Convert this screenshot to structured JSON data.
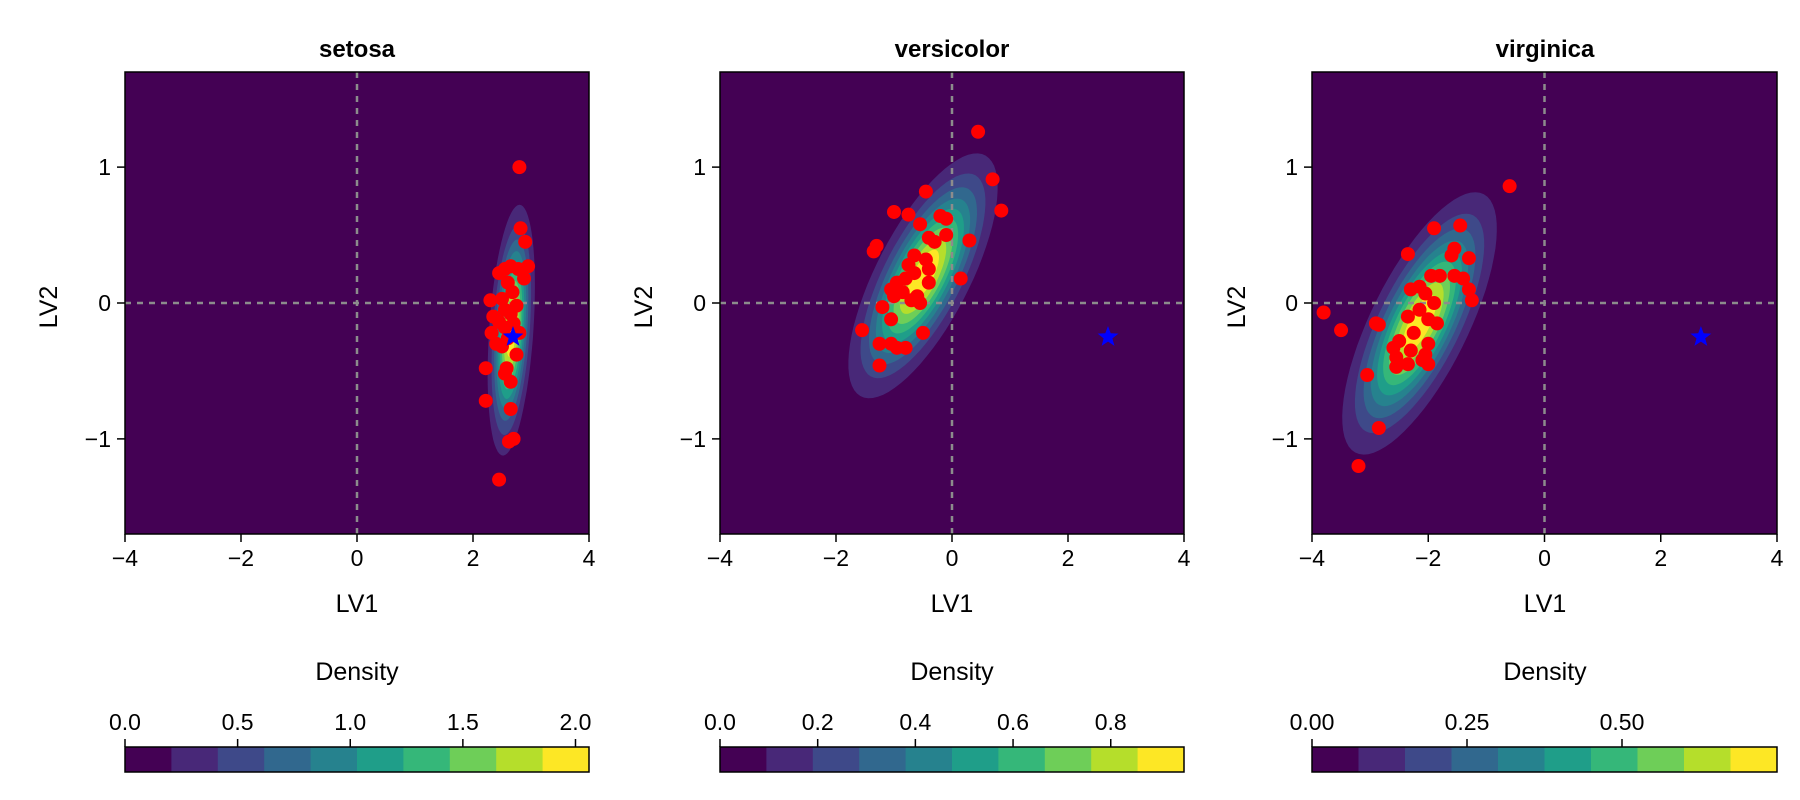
{
  "chart_data": [
    {
      "type": "scatter",
      "title": "setosa",
      "xlabel": "LV1",
      "ylabel": "LV2",
      "xlim": [
        -4,
        4
      ],
      "ylim": [
        -1.7,
        1.7
      ],
      "xticks": [
        -4,
        -2,
        0,
        2,
        4
      ],
      "xtick_labels": [
        "−4",
        "−2",
        "0",
        "2",
        "4"
      ],
      "yticks": [
        -1,
        0,
        1
      ],
      "ytick_labels": [
        "−1",
        "0",
        "1"
      ],
      "reference_lines": {
        "x": 0,
        "y": 0,
        "style": "dashed",
        "color": "#8c8c8c"
      },
      "background_color": "#440154",
      "density": {
        "center": [
          2.66,
          -0.2
        ],
        "sx": 0.19,
        "sy": 0.43,
        "rho": 0.35
      },
      "star_point": {
        "x": 2.69,
        "y": -0.25,
        "color": "#0000ff"
      },
      "point_color": "#ff0000",
      "points": [
        [
          2.8,
          1.0
        ],
        [
          2.82,
          0.55
        ],
        [
          2.9,
          0.45
        ],
        [
          2.95,
          0.27
        ],
        [
          2.65,
          0.27
        ],
        [
          2.78,
          0.25
        ],
        [
          2.55,
          0.25
        ],
        [
          2.45,
          0.22
        ],
        [
          2.88,
          0.18
        ],
        [
          2.6,
          0.15
        ],
        [
          2.68,
          0.08
        ],
        [
          2.5,
          0.03
        ],
        [
          2.3,
          0.02
        ],
        [
          2.75,
          -0.02
        ],
        [
          2.55,
          -0.05
        ],
        [
          2.65,
          -0.08
        ],
        [
          2.35,
          -0.1
        ],
        [
          2.45,
          -0.14
        ],
        [
          2.7,
          -0.15
        ],
        [
          2.55,
          -0.18
        ],
        [
          2.32,
          -0.22
        ],
        [
          2.8,
          -0.22
        ],
        [
          2.6,
          -0.26
        ],
        [
          2.4,
          -0.3
        ],
        [
          2.5,
          -0.32
        ],
        [
          2.75,
          -0.38
        ],
        [
          2.22,
          -0.48
        ],
        [
          2.58,
          -0.48
        ],
        [
          2.55,
          -0.52
        ],
        [
          2.65,
          -0.58
        ],
        [
          2.22,
          -0.72
        ],
        [
          2.65,
          -0.78
        ],
        [
          2.7,
          -1.0
        ],
        [
          2.62,
          -1.02
        ],
        [
          2.45,
          -1.3
        ]
      ],
      "colorbar": {
        "label": "Density",
        "range": [
          0,
          2.06
        ],
        "ticks": [
          0,
          0.5,
          1.0,
          1.5,
          2.0
        ],
        "tick_labels": [
          "0.0",
          "0.5",
          "1.0",
          "1.5",
          "2.0"
        ],
        "levels": 10
      }
    },
    {
      "type": "scatter",
      "title": "versicolor",
      "xlabel": "LV1",
      "ylabel": "LV2",
      "xlim": [
        -4,
        4
      ],
      "ylim": [
        -1.7,
        1.7
      ],
      "xticks": [
        -4,
        -2,
        0,
        2,
        4
      ],
      "xtick_labels": [
        "−4",
        "−2",
        "0",
        "2",
        "4"
      ],
      "yticks": [
        -1,
        0,
        1
      ],
      "ytick_labels": [
        "−1",
        "0",
        "1"
      ],
      "reference_lines": {
        "x": 0,
        "y": 0,
        "style": "dashed",
        "color": "#8c8c8c"
      },
      "background_color": "#440154",
      "density": {
        "center": [
          -0.5,
          0.2
        ],
        "sx": 0.6,
        "sy": 0.42,
        "rho": 0.72
      },
      "star_point": {
        "x": 2.69,
        "y": -0.25,
        "color": "#0000ff"
      },
      "point_color": "#ff0000",
      "points": [
        [
          0.45,
          1.26
        ],
        [
          0.7,
          0.91
        ],
        [
          -0.45,
          0.82
        ],
        [
          -1.0,
          0.67
        ],
        [
          0.85,
          0.68
        ],
        [
          -0.75,
          0.65
        ],
        [
          -0.2,
          0.64
        ],
        [
          -0.1,
          0.62
        ],
        [
          -0.55,
          0.58
        ],
        [
          -0.1,
          0.5
        ],
        [
          0.3,
          0.46
        ],
        [
          -0.4,
          0.48
        ],
        [
          -0.3,
          0.45
        ],
        [
          -1.3,
          0.42
        ],
        [
          -1.35,
          0.38
        ],
        [
          -0.65,
          0.35
        ],
        [
          -0.45,
          0.32
        ],
        [
          -0.75,
          0.28
        ],
        [
          -0.65,
          0.22
        ],
        [
          -0.4,
          0.25
        ],
        [
          0.15,
          0.18
        ],
        [
          -0.8,
          0.18
        ],
        [
          -0.95,
          0.15
        ],
        [
          -1.05,
          0.1
        ],
        [
          -0.4,
          0.15
        ],
        [
          -0.85,
          0.08
        ],
        [
          -0.6,
          0.05
        ],
        [
          -1.0,
          0.05
        ],
        [
          -0.7,
          0.02
        ],
        [
          -0.55,
          0.0
        ],
        [
          -1.2,
          -0.03
        ],
        [
          -1.05,
          -0.12
        ],
        [
          -1.55,
          -0.2
        ],
        [
          -0.5,
          -0.22
        ],
        [
          -1.25,
          -0.3
        ],
        [
          -1.05,
          -0.3
        ],
        [
          -0.95,
          -0.33
        ],
        [
          -0.8,
          -0.33
        ],
        [
          -1.25,
          -0.46
        ]
      ],
      "colorbar": {
        "label": "Density",
        "range": [
          0,
          0.95
        ],
        "ticks": [
          0,
          0.2,
          0.4,
          0.6,
          0.8
        ],
        "tick_labels": [
          "0.0",
          "0.2",
          "0.4",
          "0.6",
          "0.8"
        ],
        "levels": 10
      }
    },
    {
      "type": "scatter",
      "title": "virginica",
      "xlabel": "LV1",
      "ylabel": "LV2",
      "xlim": [
        -4,
        4
      ],
      "ylim": [
        -1.7,
        1.7
      ],
      "xticks": [
        -4,
        -2,
        0,
        2,
        4
      ],
      "xtick_labels": [
        "−4",
        "−2",
        "0",
        "2",
        "4"
      ],
      "yticks": [
        -1,
        0,
        1
      ],
      "ytick_labels": [
        "−1",
        "0",
        "1"
      ],
      "reference_lines": {
        "x": 0,
        "y": 0,
        "style": "dashed",
        "color": "#8c8c8c"
      },
      "background_color": "#440154",
      "density": {
        "center": [
          -2.15,
          -0.15
        ],
        "sx": 0.62,
        "sy": 0.45,
        "rho": 0.72
      },
      "star_point": {
        "x": 2.69,
        "y": -0.25,
        "color": "#0000ff"
      },
      "point_color": "#ff0000",
      "points": [
        [
          -0.6,
          0.86
        ],
        [
          -1.45,
          0.57
        ],
        [
          -1.9,
          0.55
        ],
        [
          -1.55,
          0.4
        ],
        [
          -2.35,
          0.36
        ],
        [
          -1.6,
          0.35
        ],
        [
          -1.3,
          0.33
        ],
        [
          -1.8,
          0.2
        ],
        [
          -1.95,
          0.2
        ],
        [
          -1.55,
          0.2
        ],
        [
          -1.4,
          0.18
        ],
        [
          -2.15,
          0.12
        ],
        [
          -2.3,
          0.1
        ],
        [
          -1.3,
          0.1
        ],
        [
          -2.05,
          0.07
        ],
        [
          -1.25,
          0.02
        ],
        [
          -1.9,
          0.0
        ],
        [
          -2.15,
          -0.05
        ],
        [
          -3.8,
          -0.07
        ],
        [
          -2.35,
          -0.1
        ],
        [
          -2.0,
          -0.12
        ],
        [
          -1.85,
          -0.15
        ],
        [
          -2.9,
          -0.15
        ],
        [
          -2.85,
          -0.16
        ],
        [
          -3.5,
          -0.2
        ],
        [
          -2.25,
          -0.22
        ],
        [
          -2.5,
          -0.28
        ],
        [
          -2.0,
          -0.3
        ],
        [
          -2.6,
          -0.33
        ],
        [
          -2.3,
          -0.35
        ],
        [
          -2.05,
          -0.38
        ],
        [
          -2.55,
          -0.4
        ],
        [
          -2.1,
          -0.42
        ],
        [
          -2.35,
          -0.45
        ],
        [
          -2.0,
          -0.45
        ],
        [
          -2.55,
          -0.47
        ],
        [
          -3.05,
          -0.53
        ],
        [
          -2.85,
          -0.92
        ],
        [
          -3.2,
          -1.2
        ]
      ],
      "colorbar": {
        "label": "Density",
        "range": [
          0,
          0.75
        ],
        "ticks": [
          0,
          0.25,
          0.5
        ],
        "tick_labels": [
          "0.00",
          "0.25",
          "0.50"
        ],
        "levels": 10
      }
    }
  ]
}
